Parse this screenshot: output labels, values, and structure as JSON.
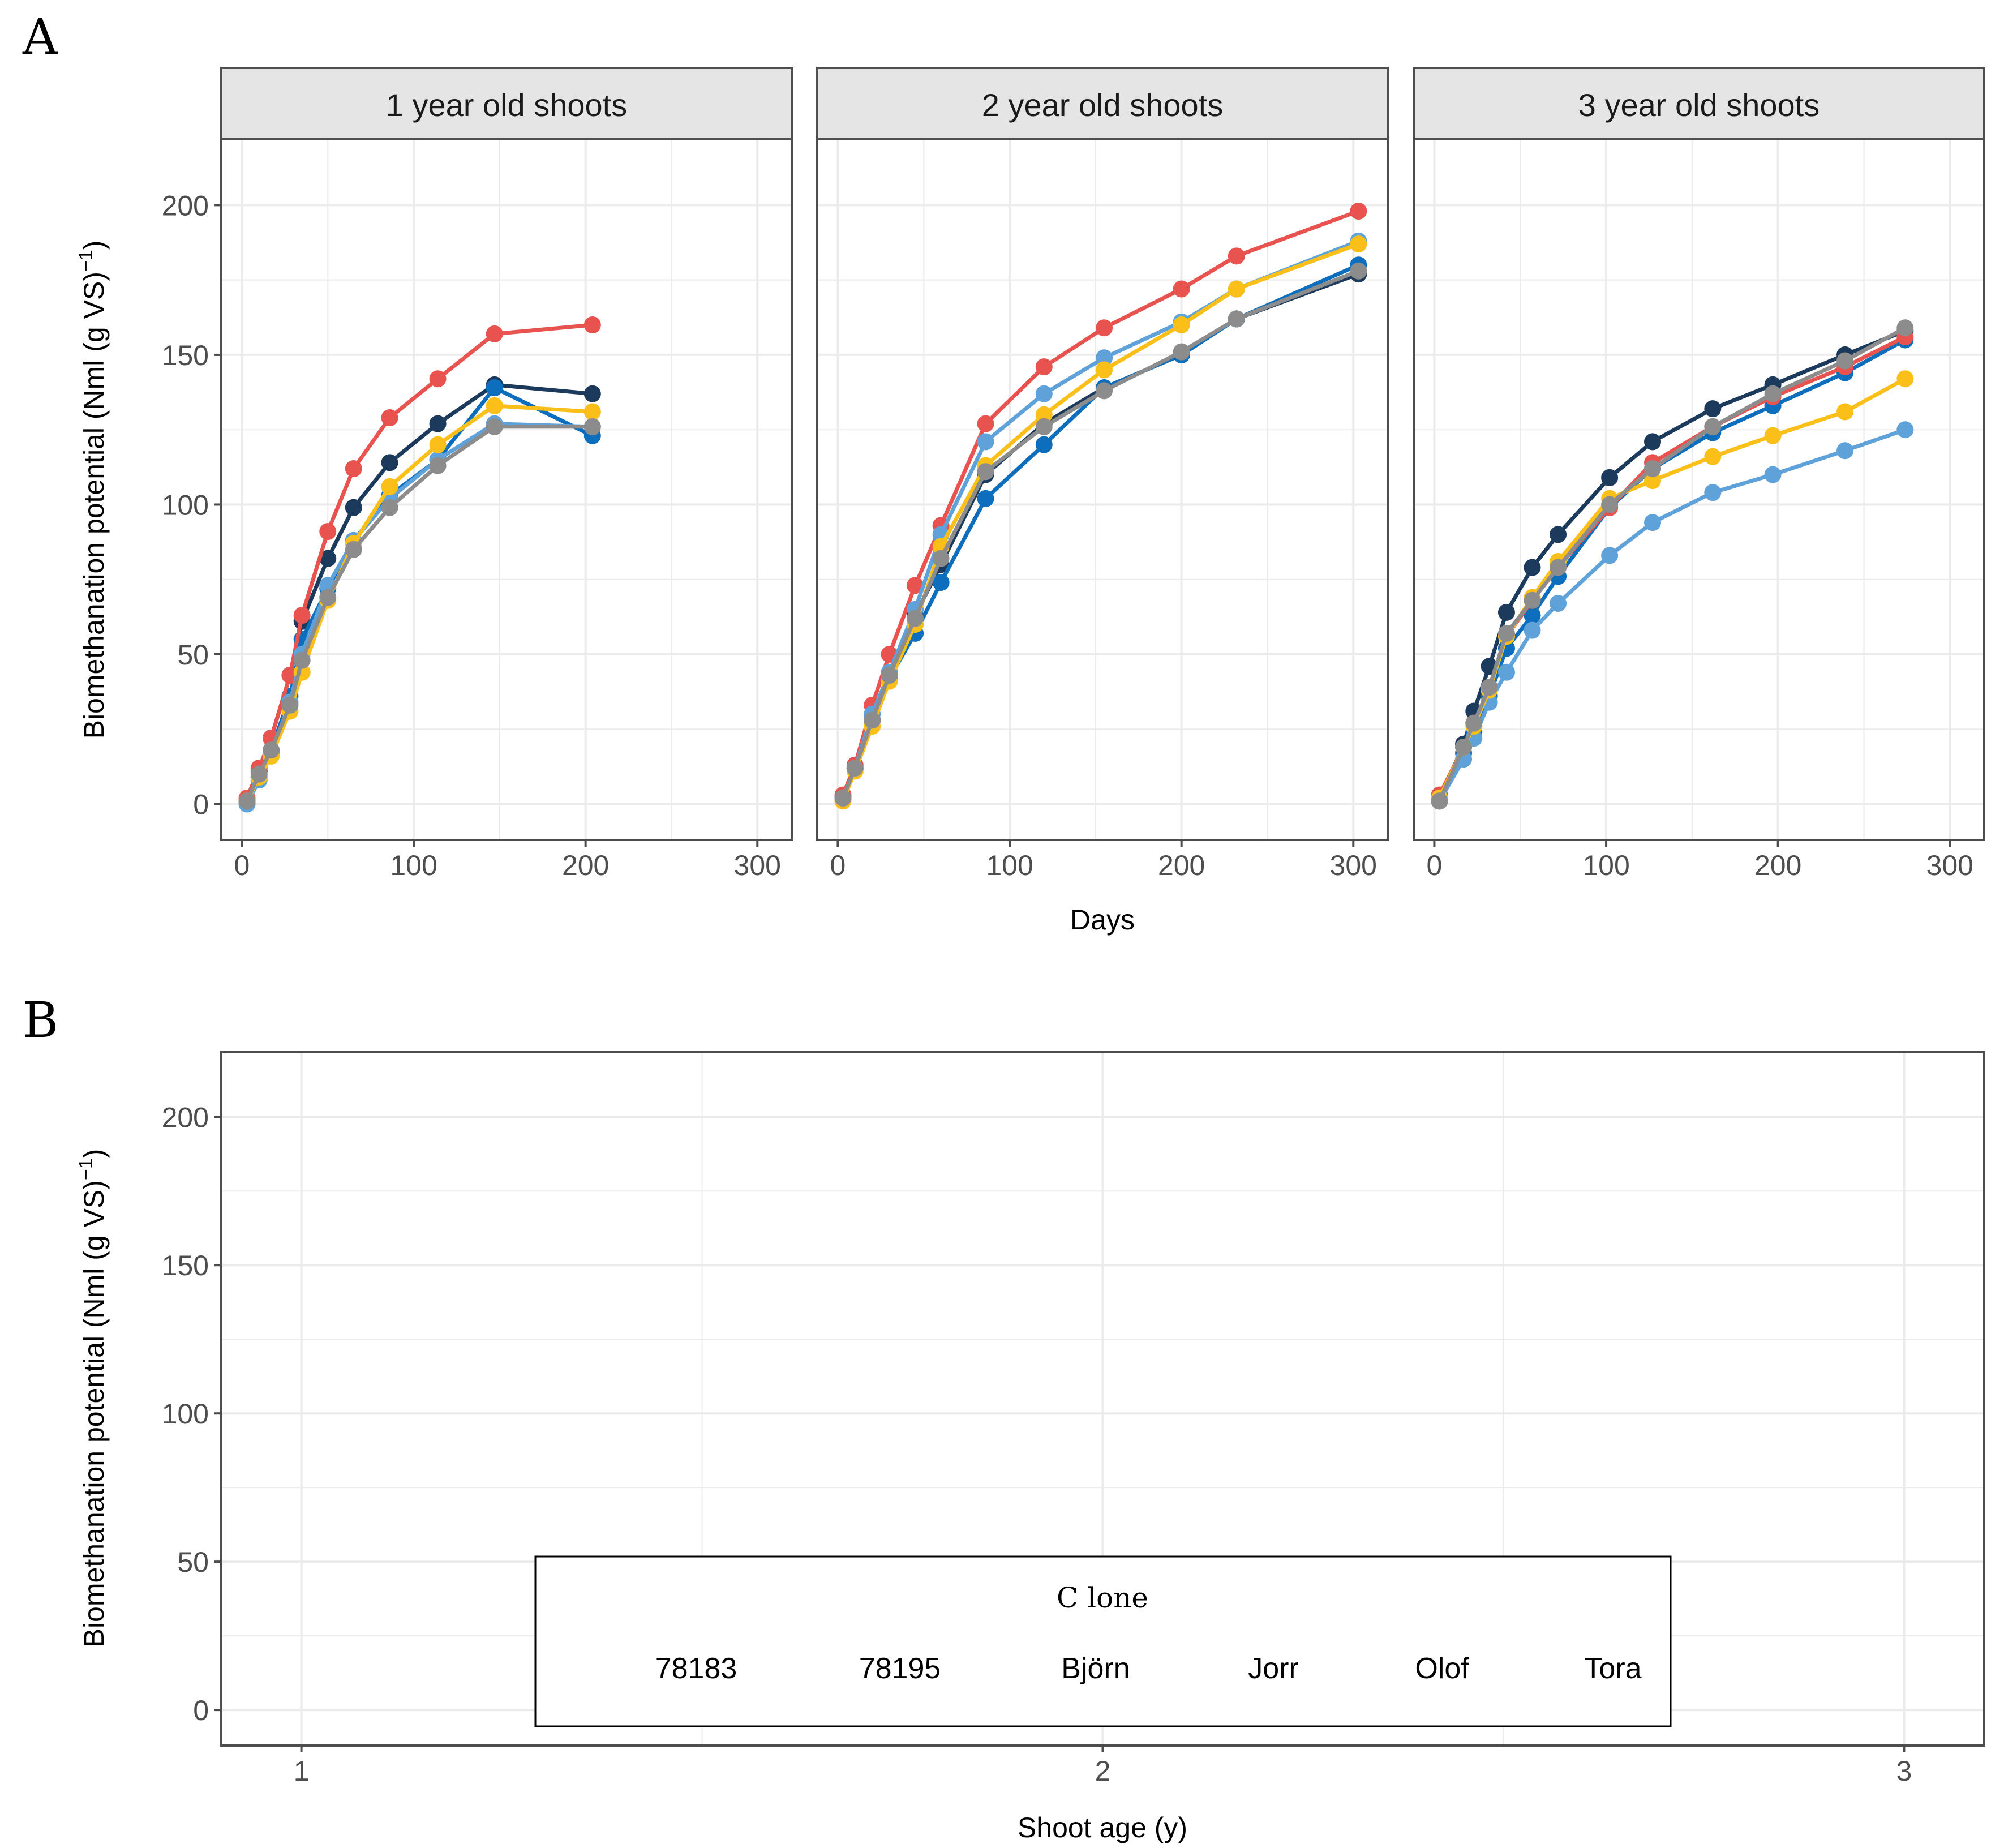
{
  "figure": {
    "panel_a_label": "A",
    "panel_b_label": "B",
    "y_label": "Biomethanation potential (Nml (g VS)",
    "y_label_sup": "−1",
    "y_label_close": ")"
  },
  "colors": {
    "78183": "#1b3a5c",
    "78195": "#0c6ebd",
    "Björn": "#e8524f",
    "Jorr": "#5fa2da",
    "Olof": "#fbbf1a",
    "Tora": "#8c8c8c",
    "strip_fill": "#e5e5e5",
    "panel_border": "#4d4d4d",
    "grid": "#ebebeb",
    "tick_text": "#4d4d4d"
  },
  "chart_data": [
    {
      "type": "line",
      "title": "1 year old shoots",
      "xlabel": "",
      "ylabel": "Biomethanation potential (Nml (g VS)^-1)",
      "xlim": [
        -12,
        320
      ],
      "ylim": [
        -12,
        222
      ],
      "x_ticks": [
        0,
        100,
        200,
        300
      ],
      "y_ticks": [
        0,
        50,
        100,
        150,
        200
      ],
      "series": [
        {
          "name": "78183",
          "x": [
            3,
            10,
            17,
            28,
            35,
            50,
            65,
            86,
            114,
            147,
            204
          ],
          "y": [
            1,
            11,
            22,
            43,
            61,
            82,
            99,
            114,
            127,
            140,
            137
          ]
        },
        {
          "name": "78195",
          "x": [
            3,
            10,
            17,
            28,
            35,
            50,
            65,
            86,
            114,
            147,
            204
          ],
          "y": [
            1,
            9,
            18,
            36,
            55,
            72,
            88,
            103,
            115,
            139,
            123
          ]
        },
        {
          "name": "Björn",
          "x": [
            3,
            10,
            17,
            28,
            35,
            50,
            65,
            86,
            114,
            147,
            204
          ],
          "y": [
            2,
            12,
            22,
            43,
            63,
            91,
            112,
            129,
            142,
            157,
            160
          ]
        },
        {
          "name": "Jorr",
          "x": [
            3,
            10,
            17,
            28,
            35,
            50,
            65,
            86,
            114,
            147,
            204
          ],
          "y": [
            0,
            8,
            17,
            34,
            50,
            73,
            88,
            102,
            115,
            127,
            126
          ]
        },
        {
          "name": "Olof",
          "x": [
            3,
            10,
            17,
            28,
            35,
            50,
            65,
            86,
            114,
            147,
            204
          ],
          "y": [
            1,
            9,
            16,
            31,
            44,
            68,
            87,
            106,
            120,
            133,
            131
          ]
        },
        {
          "name": "Tora",
          "x": [
            3,
            10,
            17,
            28,
            35,
            50,
            65,
            86,
            114,
            147,
            204
          ],
          "y": [
            1,
            10,
            18,
            33,
            48,
            69,
            85,
            99,
            113,
            126,
            126
          ]
        }
      ]
    },
    {
      "type": "line",
      "title": "2 year old shoots",
      "xlabel": "Days",
      "ylabel": "",
      "xlim": [
        -12,
        320
      ],
      "ylim": [
        -12,
        222
      ],
      "x_ticks": [
        0,
        100,
        200,
        300
      ],
      "y_ticks": [
        0,
        50,
        100,
        150,
        200
      ],
      "series": [
        {
          "name": "78183",
          "x": [
            3,
            10,
            20,
            30,
            45,
            60,
            86,
            120,
            155,
            200,
            232,
            303
          ],
          "y": [
            2,
            12,
            28,
            43,
            63,
            80,
            110,
            127,
            139,
            150,
            162,
            177
          ]
        },
        {
          "name": "78195",
          "x": [
            3,
            10,
            20,
            30,
            45,
            60,
            86,
            120,
            155,
            200,
            232,
            303
          ],
          "y": [
            2,
            12,
            28,
            42,
            57,
            74,
            102,
            120,
            139,
            150,
            162,
            180
          ]
        },
        {
          "name": "Björn",
          "x": [
            3,
            10,
            20,
            30,
            45,
            60,
            86,
            120,
            155,
            200,
            232,
            303
          ],
          "y": [
            3,
            13,
            33,
            50,
            73,
            93,
            127,
            146,
            159,
            172,
            183,
            198
          ]
        },
        {
          "name": "Jorr",
          "x": [
            3,
            10,
            20,
            30,
            45,
            60,
            86,
            120,
            155,
            200,
            232,
            303
          ],
          "y": [
            2,
            12,
            30,
            44,
            65,
            90,
            121,
            137,
            149,
            161,
            172,
            188
          ]
        },
        {
          "name": "Olof",
          "x": [
            3,
            10,
            20,
            30,
            45,
            60,
            86,
            120,
            155,
            200,
            232,
            303
          ],
          "y": [
            1,
            11,
            26,
            41,
            60,
            86,
            113,
            130,
            145,
            160,
            172,
            187
          ]
        },
        {
          "name": "Tora",
          "x": [
            3,
            10,
            20,
            30,
            45,
            60,
            86,
            120,
            155,
            200,
            232,
            303
          ],
          "y": [
            2,
            12,
            28,
            43,
            62,
            82,
            111,
            126,
            138,
            151,
            162,
            178
          ]
        }
      ]
    },
    {
      "type": "line",
      "title": "3 year old shoots",
      "xlabel": "",
      "ylabel": "",
      "xlim": [
        -12,
        320
      ],
      "ylim": [
        -12,
        222
      ],
      "x_ticks": [
        0,
        100,
        200,
        300
      ],
      "y_ticks": [
        0,
        50,
        100,
        150,
        200
      ],
      "series": [
        {
          "name": "78183",
          "x": [
            3,
            17,
            23,
            32,
            42,
            57,
            72,
            102,
            127,
            162,
            197,
            239,
            274
          ],
          "y": [
            1,
            20,
            31,
            46,
            64,
            79,
            90,
            109,
            121,
            132,
            140,
            150,
            158
          ]
        },
        {
          "name": "78195",
          "x": [
            3,
            17,
            23,
            32,
            42,
            57,
            72,
            102,
            127,
            162,
            197,
            239,
            274
          ],
          "y": [
            1,
            17,
            24,
            36,
            52,
            63,
            76,
            99,
            112,
            124,
            133,
            144,
            155
          ]
        },
        {
          "name": "Björn",
          "x": [
            3,
            17,
            23,
            32,
            42,
            57,
            72,
            102,
            127,
            162,
            197,
            239,
            274
          ],
          "y": [
            3,
            19,
            27,
            39,
            56,
            68,
            79,
            99,
            114,
            126,
            136,
            146,
            156
          ]
        },
        {
          "name": "Jorr",
          "x": [
            3,
            17,
            23,
            32,
            42,
            57,
            72,
            102,
            127,
            162,
            197,
            239,
            274
          ],
          "y": [
            1,
            15,
            22,
            34,
            44,
            58,
            67,
            83,
            94,
            104,
            110,
            118,
            125
          ]
        },
        {
          "name": "Olof",
          "x": [
            3,
            17,
            23,
            32,
            42,
            57,
            72,
            102,
            127,
            162,
            197,
            239,
            274
          ],
          "y": [
            2,
            19,
            26,
            38,
            56,
            69,
            81,
            102,
            108,
            116,
            123,
            131,
            142
          ]
        },
        {
          "name": "Tora",
          "x": [
            3,
            17,
            23,
            32,
            42,
            57,
            72,
            102,
            127,
            162,
            197,
            239,
            274
          ],
          "y": [
            1,
            19,
            27,
            39,
            57,
            68,
            79,
            100,
            112,
            126,
            137,
            148,
            159
          ]
        }
      ]
    },
    {
      "type": "line",
      "title": "",
      "xlabel": "Shoot age (y)",
      "ylabel": "Biomethanation potential (Nml (g VS)^-1)",
      "xlim": [
        0.9,
        3.1
      ],
      "ylim": [
        -12,
        222
      ],
      "x_ticks": [
        1,
        2,
        3
      ],
      "y_ticks": [
        0,
        50,
        100,
        150,
        200
      ],
      "series": []
    }
  ],
  "legend": {
    "title": "C lone",
    "items": [
      "78183",
      "78195",
      "Björn",
      "Jorr",
      "Olof",
      "Tora"
    ]
  }
}
